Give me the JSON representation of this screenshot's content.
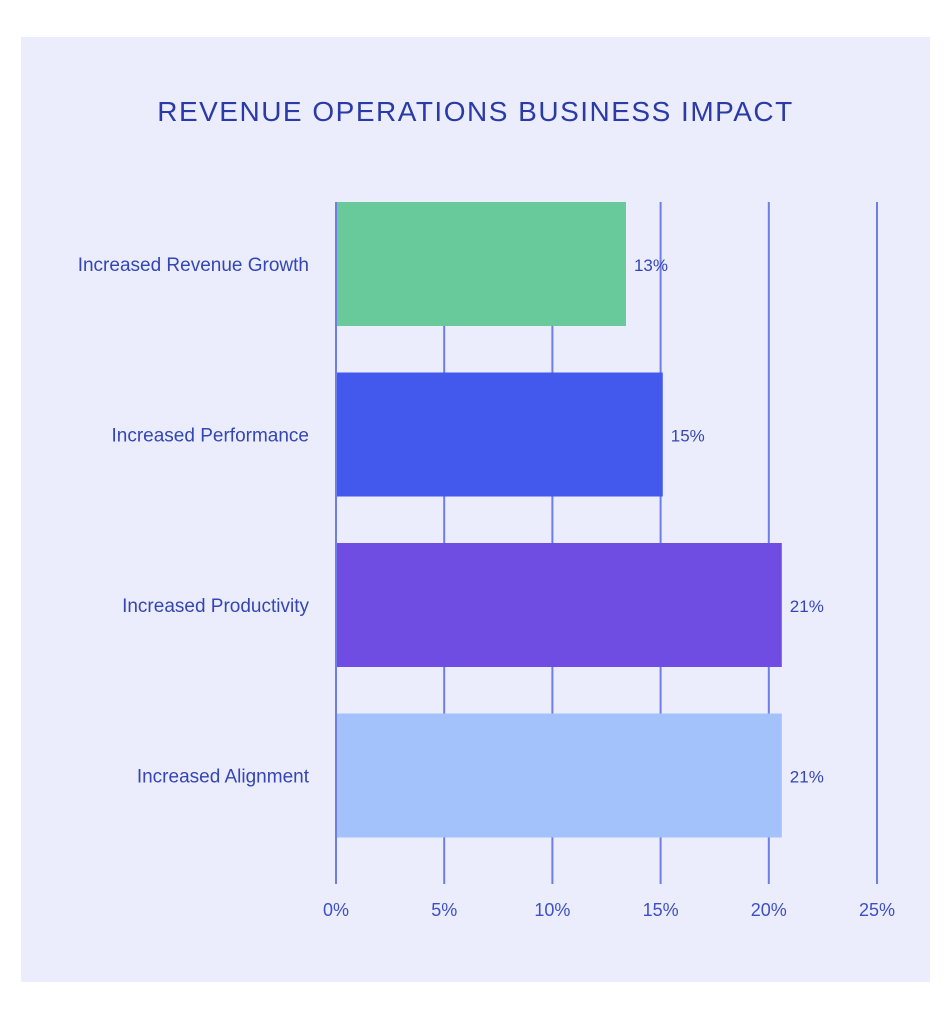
{
  "chart_data": {
    "type": "bar",
    "orientation": "horizontal",
    "title": "REVENUE OPERATIONS BUSINESS IMPACT",
    "categories": [
      "Increased Revenue Growth",
      "Increased Performance",
      "Increased Productivity",
      "Increased Alignment"
    ],
    "values": [
      13.4,
      15.1,
      20.6,
      20.6
    ],
    "value_labels": [
      "13%",
      "15%",
      "21%",
      "21%"
    ],
    "bar_colors": [
      "#68c99b",
      "#4358ec",
      "#6f4ce2",
      "#a3c1fa"
    ],
    "xticks": [
      0,
      5,
      10,
      15,
      20,
      25
    ],
    "xtick_labels": [
      "0%",
      "5%",
      "10%",
      "15%",
      "20%",
      "25%"
    ],
    "xlim": [
      0,
      25
    ],
    "grid": true,
    "grid_color": "#6f7de6",
    "background": "#ecedfc",
    "text_color": "#3446b4"
  }
}
